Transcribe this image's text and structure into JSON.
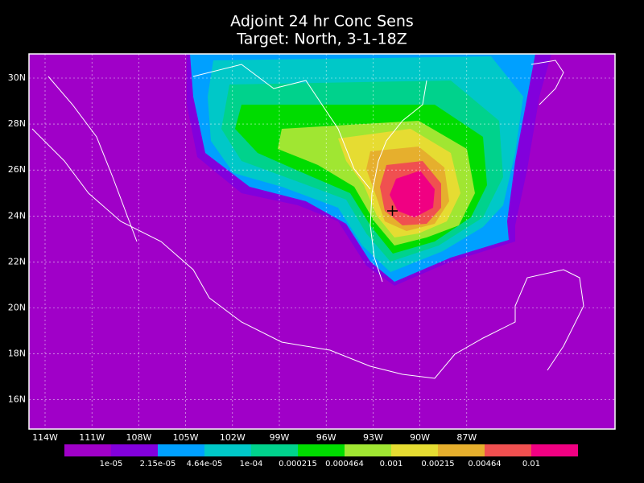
{
  "title": [
    "Adjoint 24 hr Conc Sens",
    "Target: North, 3-1-18Z"
  ],
  "lat_labels": [
    "30N",
    "28N",
    "26N",
    "24N",
    "22N",
    "20N",
    "18N",
    "16N"
  ],
  "lon_labels": [
    "114W",
    "111W",
    "108W",
    "105W",
    "102W",
    "99W",
    "96W",
    "93W",
    "90W",
    "87W"
  ],
  "colorbar": {
    "colors": [
      "#a000c8",
      "#8200dc",
      "#00a0ff",
      "#00c8c8",
      "#00d28c",
      "#00dc00",
      "#a0e632",
      "#e6dc32",
      "#e6af2d",
      "#f05050",
      "#f00082"
    ],
    "labels": [
      "1e-05",
      "2.15e-05",
      "4.64e-05",
      "1e-04",
      "0.000215",
      "0.000464",
      "0.001",
      "0.00215",
      "0.00464",
      "0.01"
    ]
  }
}
